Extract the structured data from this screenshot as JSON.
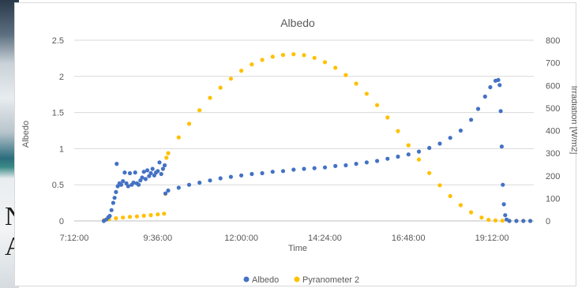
{
  "background": {
    "letters": [
      "N",
      "A"
    ]
  },
  "chart_data": {
    "type": "scatter",
    "title": "Albedo",
    "xlabel": "Time",
    "ylabel": "Albedo",
    "y2label": "Irradiation [W/m2]",
    "x_ticks": [
      "7:12:00",
      "9:36:00",
      "12:00:00",
      "14:24:00",
      "16:48:00",
      "19:12:00"
    ],
    "x_tick_hours": [
      7.2,
      9.6,
      12.0,
      14.4,
      16.8,
      19.2
    ],
    "xlim_hours": [
      7.2,
      20.4
    ],
    "y_ticks": [
      "0",
      "0.5",
      "1",
      "1.5",
      "2",
      "2.5"
    ],
    "ylim": [
      0,
      2.5
    ],
    "y2_ticks": [
      "0",
      "100",
      "200",
      "300",
      "400",
      "500",
      "600",
      "700",
      "800"
    ],
    "y2lim": [
      0,
      800
    ],
    "grid": true,
    "legend_position": "bottom",
    "series": [
      {
        "name": "Albedo",
        "color": "#4472C4",
        "axis": "left",
        "points": [
          [
            8.05,
            0.0
          ],
          [
            8.12,
            0.02
          ],
          [
            8.18,
            0.05
          ],
          [
            8.22,
            0.07
          ],
          [
            8.27,
            0.15
          ],
          [
            8.32,
            0.25
          ],
          [
            8.36,
            0.32
          ],
          [
            8.4,
            0.4
          ],
          [
            8.42,
            0.79
          ],
          [
            8.45,
            0.48
          ],
          [
            8.5,
            0.52
          ],
          [
            8.55,
            0.5
          ],
          [
            8.6,
            0.55
          ],
          [
            8.65,
            0.67
          ],
          [
            8.7,
            0.52
          ],
          [
            8.75,
            0.48
          ],
          [
            8.8,
            0.66
          ],
          [
            8.85,
            0.5
          ],
          [
            8.9,
            0.53
          ],
          [
            8.95,
            0.67
          ],
          [
            9.0,
            0.52
          ],
          [
            9.05,
            0.5
          ],
          [
            9.1,
            0.56
          ],
          [
            9.15,
            0.6
          ],
          [
            9.2,
            0.68
          ],
          [
            9.25,
            0.58
          ],
          [
            9.3,
            0.7
          ],
          [
            9.35,
            0.62
          ],
          [
            9.4,
            0.66
          ],
          [
            9.45,
            0.72
          ],
          [
            9.5,
            0.63
          ],
          [
            9.55,
            0.67
          ],
          [
            9.6,
            0.69
          ],
          [
            9.65,
            0.81
          ],
          [
            9.7,
            0.65
          ],
          [
            9.75,
            0.72
          ],
          [
            9.8,
            0.77
          ],
          [
            9.82,
            0.38
          ],
          [
            9.9,
            0.42
          ],
          [
            10.2,
            0.46
          ],
          [
            10.5,
            0.5
          ],
          [
            10.8,
            0.53
          ],
          [
            11.1,
            0.56
          ],
          [
            11.4,
            0.59
          ],
          [
            11.7,
            0.61
          ],
          [
            12.0,
            0.63
          ],
          [
            12.3,
            0.65
          ],
          [
            12.6,
            0.66
          ],
          [
            12.9,
            0.68
          ],
          [
            13.2,
            0.69
          ],
          [
            13.5,
            0.71
          ],
          [
            13.8,
            0.72
          ],
          [
            14.1,
            0.73
          ],
          [
            14.4,
            0.74
          ],
          [
            14.7,
            0.76
          ],
          [
            15.0,
            0.77
          ],
          [
            15.3,
            0.79
          ],
          [
            15.6,
            0.81
          ],
          [
            15.9,
            0.83
          ],
          [
            16.2,
            0.86
          ],
          [
            16.5,
            0.89
          ],
          [
            16.8,
            0.92
          ],
          [
            17.1,
            0.96
          ],
          [
            17.4,
            1.01
          ],
          [
            17.7,
            1.07
          ],
          [
            18.0,
            1.15
          ],
          [
            18.3,
            1.25
          ],
          [
            18.6,
            1.4
          ],
          [
            18.8,
            1.55
          ],
          [
            19.0,
            1.72
          ],
          [
            19.15,
            1.85
          ],
          [
            19.3,
            1.94
          ],
          [
            19.38,
            1.95
          ],
          [
            19.42,
            1.88
          ],
          [
            19.45,
            1.52
          ],
          [
            19.48,
            1.03
          ],
          [
            19.51,
            0.5
          ],
          [
            19.54,
            0.23
          ],
          [
            19.58,
            0.08
          ],
          [
            19.62,
            0.02
          ],
          [
            19.7,
            0.0
          ],
          [
            19.9,
            0.0
          ],
          [
            20.1,
            0.0
          ],
          [
            20.3,
            0.0
          ]
        ]
      },
      {
        "name": "Pyranometer 2",
        "color": "#FFC000",
        "axis": "right",
        "points": [
          [
            8.05,
            3
          ],
          [
            8.2,
            8
          ],
          [
            8.4,
            12
          ],
          [
            8.6,
            15
          ],
          [
            8.8,
            18
          ],
          [
            9.0,
            20
          ],
          [
            9.2,
            23
          ],
          [
            9.4,
            26
          ],
          [
            9.6,
            29
          ],
          [
            9.78,
            32
          ],
          [
            9.82,
            120
          ],
          [
            9.85,
            280
          ],
          [
            9.9,
            300
          ],
          [
            10.2,
            370
          ],
          [
            10.5,
            430
          ],
          [
            10.8,
            490
          ],
          [
            11.1,
            545
          ],
          [
            11.4,
            590
          ],
          [
            11.7,
            630
          ],
          [
            12.0,
            665
          ],
          [
            12.3,
            693
          ],
          [
            12.6,
            713
          ],
          [
            12.9,
            727
          ],
          [
            13.2,
            735
          ],
          [
            13.5,
            738
          ],
          [
            13.8,
            734
          ],
          [
            14.1,
            722
          ],
          [
            14.4,
            703
          ],
          [
            14.7,
            678
          ],
          [
            15.0,
            646
          ],
          [
            15.3,
            608
          ],
          [
            15.6,
            563
          ],
          [
            15.9,
            513
          ],
          [
            16.2,
            458
          ],
          [
            16.5,
            398
          ],
          [
            16.8,
            335
          ],
          [
            17.1,
            272
          ],
          [
            17.4,
            212
          ],
          [
            17.7,
            158
          ],
          [
            18.0,
            110
          ],
          [
            18.3,
            70
          ],
          [
            18.6,
            38
          ],
          [
            18.9,
            15
          ],
          [
            19.1,
            5
          ],
          [
            19.3,
            2
          ],
          [
            19.5,
            1
          ],
          [
            19.7,
            0
          ],
          [
            19.9,
            0
          ],
          [
            20.1,
            0
          ],
          [
            20.3,
            0
          ]
        ]
      }
    ]
  }
}
